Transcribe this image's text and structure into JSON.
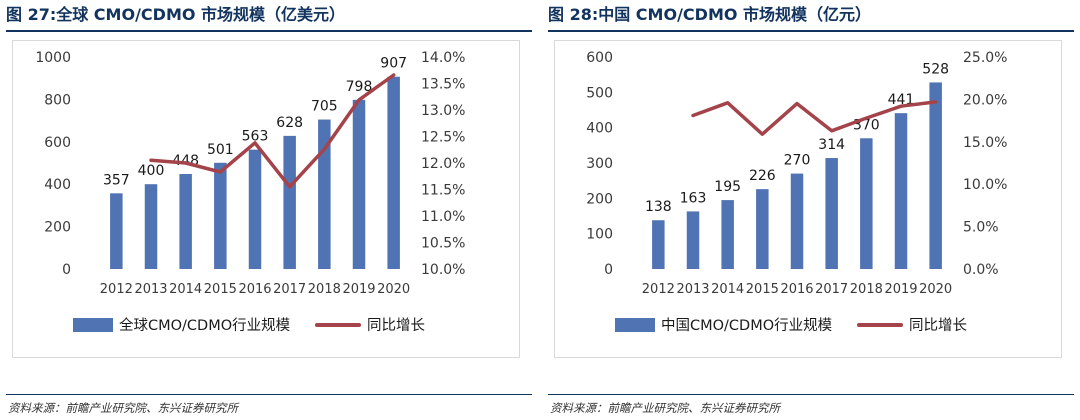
{
  "colors": {
    "bar": "#4f73b3",
    "line": "#a4444a",
    "title": "#12335e",
    "axis_text": "#3a3a3a"
  },
  "panels": [
    {
      "title": "图 27:全球 CMO/CDMO 市场规模（亿美元）",
      "source": "资料来源：前瞻产业研究院、东兴证券研究所",
      "chart_data": {
        "type": "bar",
        "categories": [
          "2012",
          "2013",
          "2014",
          "2015",
          "2016",
          "2017",
          "2018",
          "2019",
          "2020"
        ],
        "series": [
          {
            "name": "全球CMO/CDMO行业规模",
            "type": "bar",
            "axis": "left",
            "values": [
              357,
              400,
              448,
              501,
              563,
              628,
              705,
              798,
              907
            ]
          },
          {
            "name": "同比增长",
            "type": "line",
            "axis": "right",
            "values": [
              null,
              12.05,
              12.0,
              11.83,
              12.38,
              11.55,
              12.26,
              13.19,
              13.66
            ]
          }
        ],
        "data_labels": [
          "357",
          "400",
          "448",
          "501",
          "563",
          "628",
          "705",
          "798",
          "907"
        ],
        "y_left": {
          "min": 0,
          "max": 1000,
          "step": 200,
          "ticks": [
            "0",
            "200",
            "400",
            "600",
            "800",
            "1000"
          ]
        },
        "y_right": {
          "min": 10.0,
          "max": 14.0,
          "step": 0.5,
          "ticks": [
            "10.0%",
            "10.5%",
            "11.0%",
            "11.5%",
            "12.0%",
            "12.5%",
            "13.0%",
            "13.5%",
            "14.0%"
          ]
        },
        "grid": true,
        "legend": "bottom"
      }
    },
    {
      "title": "图 28:中国 CMO/CDMO 市场规模（亿元）",
      "source": "资料来源：前瞻产业研究院、东兴证券研究所",
      "chart_data": {
        "type": "bar",
        "categories": [
          "2012",
          "2013",
          "2014",
          "2015",
          "2016",
          "2017",
          "2018",
          "2019",
          "2020"
        ],
        "series": [
          {
            "name": "中国CMO/CDMO行业规模",
            "type": "bar",
            "axis": "left",
            "values": [
              138,
              163,
              195,
              226,
              270,
              314,
              370,
              441,
              528
            ]
          },
          {
            "name": "同比增长",
            "type": "line",
            "axis": "right",
            "values": [
              null,
              18.1,
              19.6,
              15.9,
              19.5,
              16.3,
              17.8,
              19.2,
              19.7
            ]
          }
        ],
        "data_labels": [
          "138",
          "163",
          "195",
          "226",
          "270",
          "314",
          "370",
          "441",
          "528"
        ],
        "y_left": {
          "min": 0,
          "max": 600,
          "step": 100,
          "ticks": [
            "0",
            "100",
            "200",
            "300",
            "400",
            "500",
            "600"
          ]
        },
        "y_right": {
          "min": 0,
          "max": 25,
          "step": 5,
          "ticks": [
            "0.0%",
            "5.0%",
            "10.0%",
            "15.0%",
            "20.0%",
            "25.0%"
          ]
        },
        "grid": true,
        "legend": "bottom"
      }
    }
  ]
}
